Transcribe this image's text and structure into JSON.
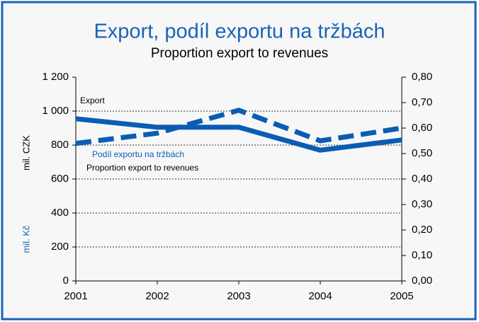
{
  "chart_data": {
    "type": "line",
    "title": "Export, podíl exportu na tržbách",
    "subtitle": "Proportion export to revenues",
    "ylabel": "mil. CZK",
    "ylabel2": "mil. Kč",
    "categories": [
      "2001",
      "2002",
      "2003",
      "2004",
      "2005"
    ],
    "series": [
      {
        "name": "Export",
        "color": "#0a5db3",
        "dashed": false,
        "values": [
          955,
          905,
          905,
          770,
          830
        ]
      },
      {
        "name": "Podíl exportu na tržbách",
        "color": "#0a5db3",
        "dashed": true,
        "axis": "y2",
        "values": [
          0.54,
          0.58,
          0.67,
          0.55,
          0.6
        ]
      }
    ],
    "annotations": [
      {
        "text": "Export",
        "color": "#000000"
      },
      {
        "text": "Podíl exportu na tržbách",
        "color": "#0a5db3"
      },
      {
        "text": "Proportion export to revenues",
        "color": "#000000"
      }
    ],
    "ylim": [
      0,
      1200
    ],
    "yticks": [
      0,
      200,
      400,
      600,
      800,
      {
        "value": 1000,
        "label": "1 000"
      },
      {
        "value": 1200,
        "label": "1 200"
      }
    ],
    "y2lim": [
      0,
      0.8
    ],
    "y2ticks": [
      {
        "value": 0,
        "label": "0,00"
      },
      {
        "value": 0.1,
        "label": "0,10"
      },
      {
        "value": 0.2,
        "label": "0,20"
      },
      {
        "value": 0.3,
        "label": "0,30"
      },
      {
        "value": 0.4,
        "label": "0,40"
      },
      {
        "value": 0.5,
        "label": "0,50"
      },
      {
        "value": 0.6,
        "label": "0,60"
      },
      {
        "value": 0.7,
        "label": "0,70"
      },
      {
        "value": 0.8,
        "label": "0,80"
      }
    ],
    "grid": true
  }
}
